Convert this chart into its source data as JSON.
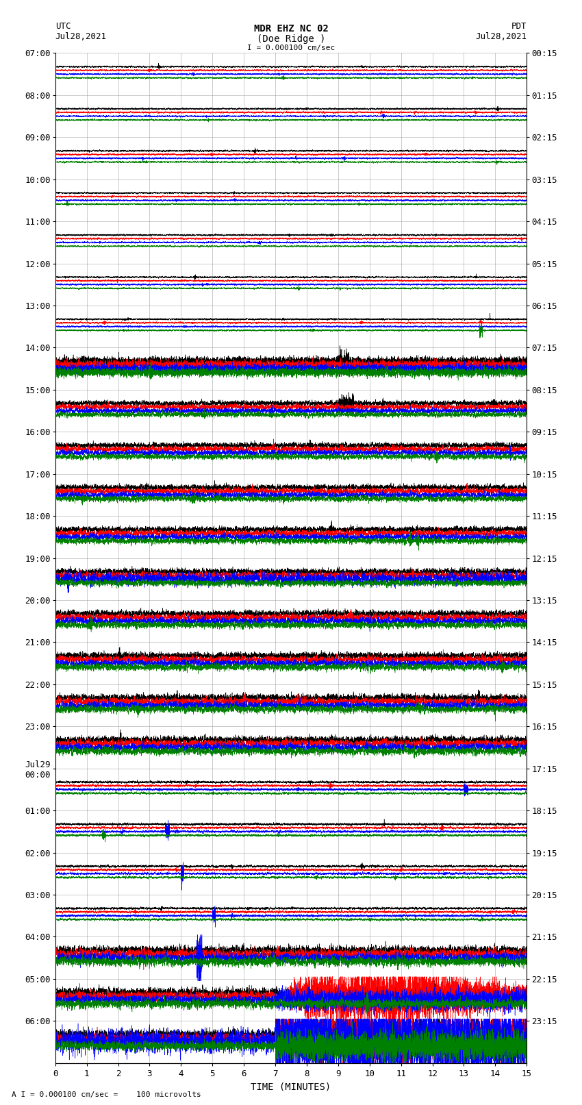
{
  "title_line1": "MDR EHZ NC 02",
  "title_line2": "(Doe Ridge )",
  "scale_label": "I = 0.000100 cm/sec",
  "footer_label": "A I = 0.000100 cm/sec =    100 microvolts",
  "utc_label": "UTC",
  "utc_date": "Jul28,2021",
  "pdt_label": "PDT",
  "pdt_date": "Jul28,2021",
  "xlabel": "TIME (MINUTES)",
  "ytick_left": [
    "07:00",
    "08:00",
    "09:00",
    "10:00",
    "11:00",
    "12:00",
    "13:00",
    "14:00",
    "15:00",
    "16:00",
    "17:00",
    "18:00",
    "19:00",
    "20:00",
    "21:00",
    "22:00",
    "23:00",
    "Jul29\n00:00",
    "01:00",
    "02:00",
    "03:00",
    "04:00",
    "05:00",
    "06:00"
  ],
  "ytick_right": [
    "00:15",
    "01:15",
    "02:15",
    "03:15",
    "04:15",
    "05:15",
    "06:15",
    "07:15",
    "08:15",
    "09:15",
    "10:15",
    "11:15",
    "12:15",
    "13:15",
    "14:15",
    "15:15",
    "16:15",
    "17:15",
    "18:15",
    "19:15",
    "20:15",
    "21:15",
    "22:15",
    "23:15"
  ],
  "n_rows": 24,
  "traces_per_row": 4,
  "colors": [
    "black",
    "red",
    "blue",
    "green"
  ],
  "bg_color": "white",
  "grid_color": "#999999",
  "font_size": 9,
  "title_font_size": 10,
  "figsize": [
    8.5,
    16.13
  ],
  "dpi": 100,
  "xmin": 0,
  "xmax": 15,
  "xticks": [
    0,
    1,
    2,
    3,
    4,
    5,
    6,
    7,
    8,
    9,
    10,
    11,
    12,
    13,
    14,
    15
  ]
}
